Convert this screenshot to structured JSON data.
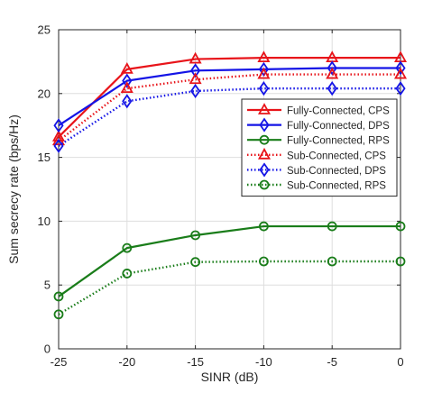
{
  "chart_data": {
    "type": "line",
    "xlabel": "SINR (dB)",
    "ylabel": "Sum secrecy rate (bps/Hz)",
    "x": [
      -25,
      -20,
      -15,
      -10,
      -5,
      0
    ],
    "xlim": [
      -25,
      0
    ],
    "ylim": [
      0,
      25
    ],
    "xticks": [
      -25,
      -20,
      -15,
      -10,
      -5,
      0
    ],
    "yticks": [
      0,
      5,
      10,
      15,
      20,
      25
    ],
    "grid": true,
    "legend_position": "right",
    "series": [
      {
        "name": "Fully-Connected, CPS",
        "values": [
          16.6,
          21.9,
          22.7,
          22.8,
          22.8,
          22.8
        ],
        "color": "#e8141a",
        "line": "solid",
        "marker": "triangle"
      },
      {
        "name": "Fully-Connected, DPS",
        "values": [
          17.5,
          21.0,
          21.8,
          21.9,
          22.0,
          22.0
        ],
        "color": "#1414e6",
        "line": "solid",
        "marker": "diamond"
      },
      {
        "name": "Fully-Connected, RPS",
        "values": [
          4.1,
          7.9,
          8.9,
          9.6,
          9.6,
          9.6
        ],
        "color": "#1a7d1a",
        "line": "solid",
        "marker": "circle"
      },
      {
        "name": "Sub-Connected, CPS",
        "values": [
          16.3,
          20.4,
          21.1,
          21.5,
          21.5,
          21.5
        ],
        "color": "#e8141a",
        "line": "dotted",
        "marker": "triangle"
      },
      {
        "name": "Sub-Connected, DPS",
        "values": [
          15.9,
          19.4,
          20.2,
          20.4,
          20.4,
          20.4
        ],
        "color": "#1414e6",
        "line": "dotted",
        "marker": "diamond"
      },
      {
        "name": "Sub-Connected, RPS",
        "values": [
          2.7,
          5.9,
          6.8,
          6.85,
          6.85,
          6.85
        ],
        "color": "#1a7d1a",
        "line": "dotted",
        "marker": "circle"
      }
    ]
  }
}
